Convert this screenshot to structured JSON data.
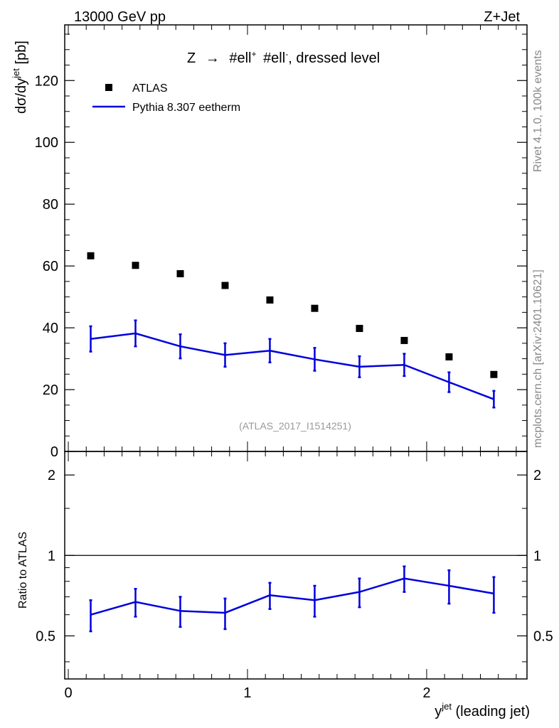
{
  "header": {
    "left": "13000 GeV pp",
    "right": "Z+Jet"
  },
  "side": {
    "rivet": "Rivet 4.1.0,  100k events",
    "mcplots": "mcplots.cern.ch [arXiv:2401.10621]"
  },
  "chart_data": [
    {
      "type": "scatter",
      "title": "Z → #ell⁺ #ell⁻, dressed level",
      "title_parts": {
        "lhs": "Z",
        "arrow": "→",
        "l1": "#ell",
        "sup1": "+",
        "l2": "#ell",
        "sup2": "-",
        "rest": ", dressed level"
      },
      "ylabel": "dσ/dy",
      "ylabel_sup": "jet",
      "ylabel_unit": " [pb]",
      "ylim": [
        0,
        138
      ],
      "yticks": [
        0,
        20,
        40,
        60,
        80,
        100,
        120
      ],
      "ytick_labels": [
        "0",
        "20",
        "40",
        "60",
        "80",
        "100",
        "120"
      ],
      "watermark": "(ATLAS_2017_I1514251)",
      "legend": [
        {
          "name": "ATLAS",
          "marker": "square",
          "color": "#000000"
        },
        {
          "name": "Pythia 8.307 eetherm",
          "marker": "line",
          "color": "#0000dd"
        }
      ],
      "series": [
        {
          "name": "ATLAS",
          "x": [
            0.125,
            0.375,
            0.625,
            0.875,
            1.125,
            1.375,
            1.625,
            1.875,
            2.125,
            2.375
          ],
          "values": [
            63.3,
            60.2,
            57.5,
            53.7,
            49.0,
            46.3,
            39.8,
            35.9,
            30.6,
            24.9
          ]
        },
        {
          "name": "Pythia 8.307 eetherm",
          "x": [
            0.125,
            0.375,
            0.625,
            0.875,
            1.125,
            1.375,
            1.625,
            1.875,
            2.125,
            2.375
          ],
          "values": [
            36.4,
            38.2,
            34.0,
            31.2,
            32.6,
            29.8,
            27.4,
            28.0,
            22.4,
            16.9
          ],
          "err": [
            4.1,
            4.2,
            3.9,
            3.8,
            3.8,
            3.7,
            3.4,
            3.6,
            3.2,
            2.7
          ]
        }
      ]
    },
    {
      "type": "line",
      "ylabel": "Ratio to ATLAS",
      "xlabel": "y",
      "xlabel_sup": "jet",
      "xlabel_rest": " (leading jet)",
      "xlim": [
        -0.02,
        2.56
      ],
      "xticks": [
        0,
        1,
        2
      ],
      "xtick_labels": [
        "0",
        "1",
        "2"
      ],
      "ylim": [
        0.345,
        2.45
      ],
      "yticks": [
        0.5,
        1,
        2
      ],
      "ytick_labels": [
        "0.5",
        "1",
        "2"
      ],
      "reference": 1,
      "series": [
        {
          "name": "Pythia 8.307 eetherm / ATLAS",
          "x": [
            0.125,
            0.375,
            0.625,
            0.875,
            1.125,
            1.375,
            1.625,
            1.875,
            2.125,
            2.375
          ],
          "values": [
            0.6,
            0.67,
            0.62,
            0.61,
            0.71,
            0.68,
            0.73,
            0.82,
            0.77,
            0.72
          ],
          "err": [
            0.08,
            0.08,
            0.08,
            0.08,
            0.08,
            0.09,
            0.09,
            0.09,
            0.11,
            0.11
          ]
        }
      ]
    }
  ]
}
